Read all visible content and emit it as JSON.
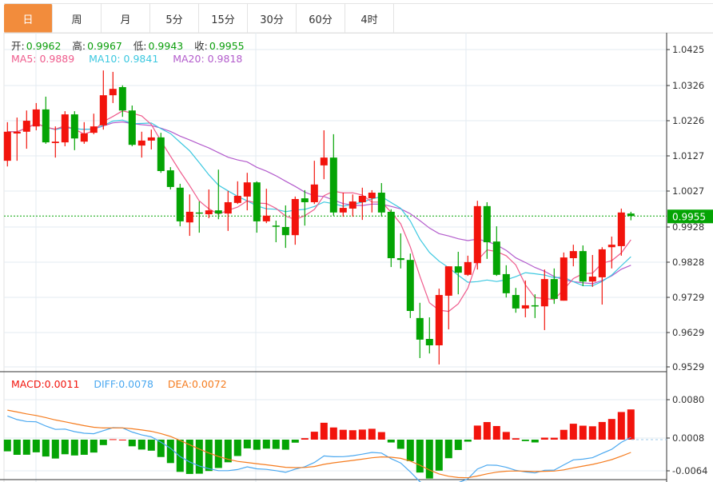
{
  "tabs": [
    {
      "label": "日",
      "active": true
    },
    {
      "label": "周"
    },
    {
      "label": "月"
    },
    {
      "label": "5分"
    },
    {
      "label": "15分"
    },
    {
      "label": "30分"
    },
    {
      "label": "60分"
    },
    {
      "label": "4时"
    }
  ],
  "ohlc_info": {
    "open_label": "开:",
    "open": "0.9962",
    "high_label": "高:",
    "high": "0.9967",
    "low_label": "低:",
    "low": "0.9943",
    "close_label": "收:",
    "close": "0.9955"
  },
  "ma_info": {
    "ma5": "MA5: 0.9889",
    "ma10": "MA10: 0.9841",
    "ma20": "MA20: 0.9818"
  },
  "macd_info": {
    "macd": "MACD:0.0011",
    "diff": "DIFF:0.0078",
    "dea": "DEA:0.0072"
  },
  "colors": {
    "up": "#f2140c",
    "down": "#04a404",
    "ma5": "#ef5b8c",
    "ma10": "#3cc8e0",
    "ma20": "#b35ccc",
    "diff": "#4aa8f0",
    "dea": "#f57c1f",
    "accent": "#f28c3c"
  },
  "chart_data": {
    "type": "candlestick",
    "price_axis": {
      "ticks": [
        "1.0425",
        "1.0326",
        "1.0226",
        "1.0127",
        "1.0027",
        "0.9928",
        "0.9828",
        "0.9729",
        "0.9629",
        "0.9529"
      ],
      "range": [
        0.9529,
        1.0425
      ]
    },
    "current_price": "0.9955",
    "macd_axis": {
      "ticks": [
        "0.0080",
        "0.0008",
        "-0.0064"
      ]
    },
    "candles": [
      [
        1.0111,
        1.022,
        1.0095,
        1.0193
      ],
      [
        1.0188,
        1.0233,
        1.0111,
        1.0193
      ],
      [
        1.0193,
        1.0253,
        1.0145,
        1.0224
      ],
      [
        1.0208,
        1.0274,
        1.0197,
        1.0256
      ],
      [
        1.0256,
        1.0292,
        1.0159,
        1.0163
      ],
      [
        1.0161,
        1.0208,
        1.012,
        1.0165
      ],
      [
        1.0163,
        1.0251,
        1.0152,
        1.0242
      ],
      [
        1.0242,
        1.0251,
        1.0141,
        1.0174
      ],
      [
        1.0165,
        1.022,
        1.0159,
        1.0188
      ],
      [
        1.019,
        1.0244,
        1.0186,
        1.0208
      ],
      [
        1.0211,
        1.0366,
        1.0199,
        1.0296
      ],
      [
        1.0296,
        1.0362,
        1.0274,
        1.0314
      ],
      [
        1.0319,
        1.0324,
        1.0235,
        1.0253
      ],
      [
        1.0253,
        1.0267,
        1.0152,
        1.0156
      ],
      [
        1.0154,
        1.0193,
        1.012,
        1.0168
      ],
      [
        1.0168,
        1.0199,
        1.0143,
        1.0177
      ],
      [
        1.0177,
        1.019,
        1.0077,
        1.0082
      ],
      [
        1.0084,
        1.0093,
        1.003,
        1.0037
      ],
      [
        1.0035,
        1.0046,
        0.9926,
        0.994
      ],
      [
        0.9937,
        1.0016,
        0.9899,
        0.9967
      ],
      [
        0.9965,
        0.9996,
        0.9908,
        0.9962
      ],
      [
        0.996,
        1.003,
        0.9949,
        0.9971
      ],
      [
        0.9971,
        1.0086,
        0.9946,
        0.9962
      ],
      [
        0.9962,
        1.0026,
        0.9913,
        0.9994
      ],
      [
        0.9992,
        1.0053,
        0.9989,
        1.0012
      ],
      [
        1.001,
        1.0077,
        0.9971,
        1.005
      ],
      [
        1.005,
        1.0053,
        0.9908,
        0.994
      ],
      [
        0.994,
        1.0032,
        0.9935,
        0.9956
      ],
      [
        0.9928,
        0.9942,
        0.9881,
        0.9926
      ],
      [
        0.9924,
        0.9985,
        0.9865,
        0.9901
      ],
      [
        0.9901,
        1.001,
        0.9874,
        1.0003
      ],
      [
        1.0005,
        1.0028,
        0.9928,
        0.9994
      ],
      [
        0.9994,
        1.0111,
        0.9989,
        1.0044
      ],
      [
        1.0098,
        1.0197,
        1.0059,
        1.012
      ],
      [
        1.012,
        1.0186,
        0.9956,
        0.9965
      ],
      [
        0.9965,
        1.0021,
        0.9953,
        0.9978
      ],
      [
        0.9976,
        1.0016,
        0.9953,
        0.9996
      ],
      [
        0.9994,
        1.0035,
        0.9944,
        1.0012
      ],
      [
        1.0005,
        1.0028,
        0.9965,
        1.0021
      ],
      [
        1.0021,
        1.0048,
        0.9953,
        0.9965
      ],
      [
        0.9967,
        0.9974,
        0.9811,
        0.9836
      ],
      [
        0.9836,
        0.9906,
        0.9807,
        0.9831
      ],
      [
        0.9831,
        0.9849,
        0.9667,
        0.9687
      ],
      [
        0.9667,
        0.971,
        0.9554,
        0.9606
      ],
      [
        0.9608,
        0.9669,
        0.9567,
        0.959
      ],
      [
        0.959,
        0.975,
        0.9536,
        0.9732
      ],
      [
        0.973,
        0.9813,
        0.9635,
        0.9813
      ],
      [
        0.9813,
        0.9854,
        0.9734,
        0.9795
      ],
      [
        0.9789,
        0.9843,
        0.9786,
        0.9825
      ],
      [
        0.9822,
        0.9998,
        0.9804,
        0.9983
      ],
      [
        0.9983,
        0.9994,
        0.9834,
        0.9881
      ],
      [
        0.9883,
        0.9926,
        0.9786,
        0.9789
      ],
      [
        0.9791,
        0.9816,
        0.9725,
        0.9737
      ],
      [
        0.9732,
        0.9752,
        0.9682,
        0.9694
      ],
      [
        0.9694,
        0.9773,
        0.9669,
        0.9703
      ],
      [
        0.9703,
        0.9734,
        0.9667,
        0.97
      ],
      [
        0.97,
        0.9804,
        0.9633,
        0.9777
      ],
      [
        0.9777,
        0.9807,
        0.9707,
        0.9721
      ],
      [
        0.9716,
        0.9852,
        0.9716,
        0.9838
      ],
      [
        0.9836,
        0.9874,
        0.9813,
        0.9856
      ],
      [
        0.9856,
        0.9872,
        0.9757,
        0.977
      ],
      [
        0.977,
        0.9845,
        0.9755,
        0.9784
      ],
      [
        0.9782,
        0.9867,
        0.9705,
        0.9861
      ],
      [
        0.9867,
        0.9897,
        0.9807,
        0.9874
      ],
      [
        0.987,
        0.9976,
        0.9843,
        0.9965
      ],
      [
        0.9962,
        0.9967,
        0.9943,
        0.9955
      ]
    ]
  }
}
